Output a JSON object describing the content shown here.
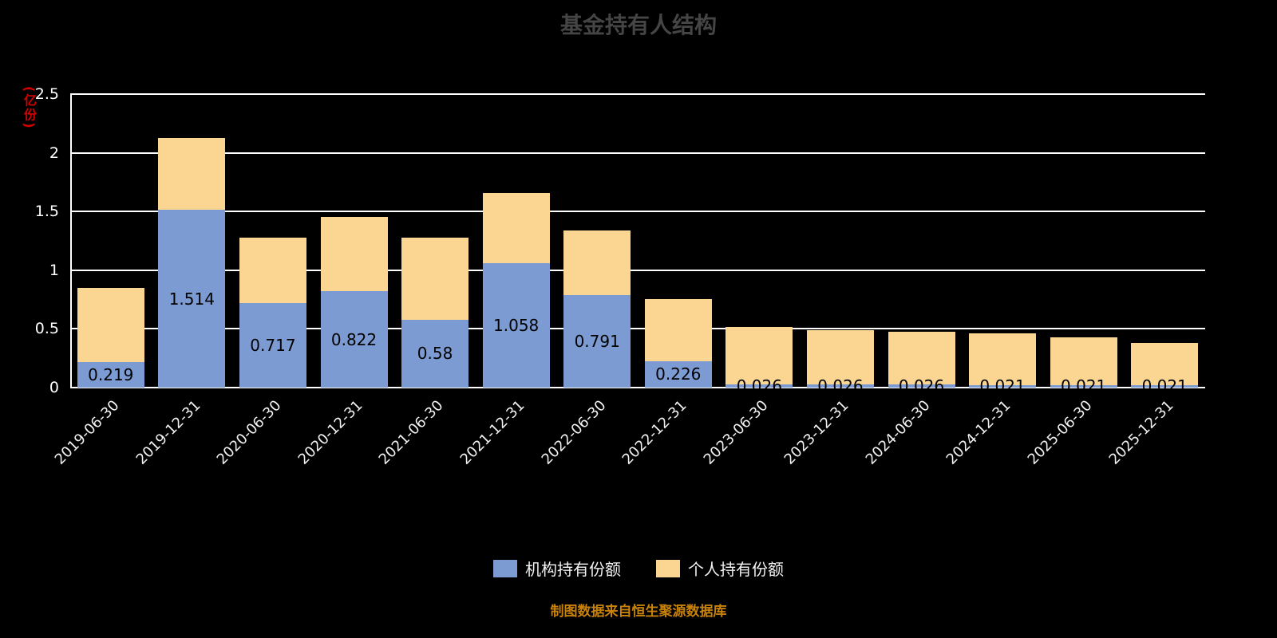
{
  "title": "基金持有人结构",
  "y_axis_unit": "(亿份)",
  "source_note": "制图数据来自恒生聚源数据库",
  "colors": {
    "background": "#000000",
    "grid": "#FFFFFF",
    "axis": "#FFFFFF",
    "title": "#454545",
    "tick_label": "#FFFFFF",
    "value_label": "#000000",
    "y_unit": "#D40000",
    "source": "#C8820A",
    "institutional": "#7B9BD2",
    "personal": "#FBD693"
  },
  "legend": [
    {
      "label": "机构持有份额",
      "color": "#7B9BD2"
    },
    {
      "label": "个人持有份额",
      "color": "#FBD693"
    }
  ],
  "chart_data": {
    "type": "bar",
    "stacked": true,
    "title": "基金持有人结构",
    "xlabel": "",
    "ylabel": "(亿份)",
    "ylim": [
      0,
      2.5
    ],
    "yticks": [
      0,
      0.5,
      1,
      1.5,
      2,
      2.5
    ],
    "grid": true,
    "legend_position": "bottom",
    "categories": [
      "2019-06-30",
      "2019-12-31",
      "2020-06-30",
      "2020-12-31",
      "2021-06-30",
      "2021-12-31",
      "2022-06-30",
      "2022-12-31",
      "2023-06-30",
      "2023-12-31",
      "2024-06-30",
      "2024-12-31",
      "2025-06-30",
      "2025-12-31"
    ],
    "series": [
      {
        "name": "机构持有份额",
        "color": "#7B9BD2",
        "values": [
          0.219,
          1.514,
          0.717,
          0.822,
          0.58,
          1.058,
          0.791,
          0.226,
          0.026,
          0.026,
          0.026,
          0.021,
          0.021,
          0.021
        ],
        "labels": [
          "0.219",
          "1.514",
          "0.717",
          "0.822",
          "0.58",
          "1.058",
          "0.791",
          "0.226",
          "0.026",
          "0.026",
          "0.026",
          "0.021",
          "0.021",
          "0.021"
        ]
      },
      {
        "name": "个人持有份额",
        "color": "#FBD693",
        "values": [
          0.63,
          0.61,
          0.56,
          0.63,
          0.7,
          0.6,
          0.55,
          0.53,
          0.49,
          0.46,
          0.45,
          0.44,
          0.41,
          0.36
        ]
      }
    ]
  }
}
